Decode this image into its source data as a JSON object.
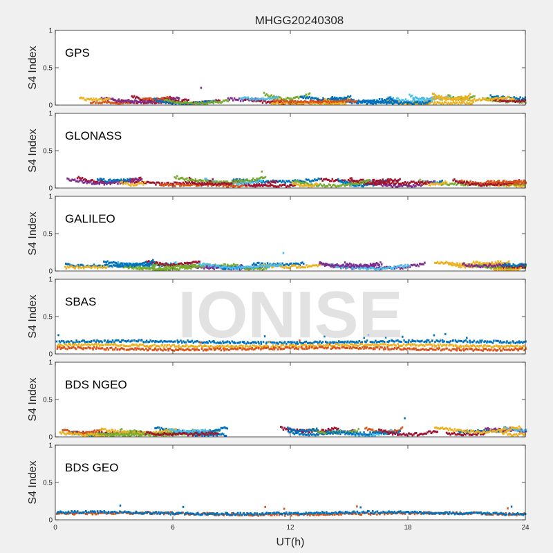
{
  "figure": {
    "title": "MHGG20240308",
    "xlabel": "UT(h)",
    "watermark": "IONISE"
  },
  "chart_data": [
    {
      "type": "scatter",
      "panel": "GPS",
      "ylabel": "S4 Index",
      "xlim": [
        0,
        24
      ],
      "ylim": [
        0,
        1
      ],
      "xticks": [
        0,
        6,
        12,
        18,
        24
      ],
      "yticks": [
        0,
        0.5,
        1
      ],
      "typical_range": [
        0.02,
        0.15
      ],
      "peak": 0.23
    },
    {
      "type": "scatter",
      "panel": "GLONASS",
      "ylabel": "S4 Index",
      "xlim": [
        0,
        24
      ],
      "ylim": [
        0,
        1
      ],
      "xticks": [
        0,
        6,
        12,
        18,
        24
      ],
      "yticks": [
        0,
        0.5,
        1
      ],
      "typical_range": [
        0.02,
        0.17
      ],
      "peak": 0.22
    },
    {
      "type": "scatter",
      "panel": "GALILEO",
      "ylabel": "S4 Index",
      "xlim": [
        0,
        24
      ],
      "ylim": [
        0,
        1
      ],
      "xticks": [
        0,
        6,
        12,
        18,
        24
      ],
      "yticks": [
        0,
        0.5,
        1
      ],
      "typical_range": [
        0.02,
        0.15
      ],
      "peak": 0.24
    },
    {
      "type": "scatter",
      "panel": "SBAS",
      "ylabel": "S4 Index",
      "xlim": [
        0,
        24
      ],
      "ylim": [
        0,
        1
      ],
      "xticks": [
        0,
        6,
        12,
        18,
        24
      ],
      "yticks": [
        0,
        0.5,
        1
      ],
      "series": [
        {
          "color": "#0072BD",
          "level": 0.16
        },
        {
          "color": "#EDB120",
          "level": 0.11
        },
        {
          "color": "#D95319",
          "level": 0.07
        }
      ]
    },
    {
      "type": "scatter",
      "panel": "BDS NGEO",
      "ylabel": "S4 Index",
      "xlim": [
        0,
        24
      ],
      "ylim": [
        0,
        1
      ],
      "xticks": [
        0,
        6,
        12,
        18,
        24
      ],
      "yticks": [
        0,
        0.5,
        1
      ],
      "typical_range": [
        0.02,
        0.15
      ],
      "peak": 0.25
    },
    {
      "type": "scatter",
      "panel": "BDS GEO",
      "ylabel": "S4 Index",
      "xlim": [
        0,
        24
      ],
      "ylim": [
        0,
        1
      ],
      "xticks": [
        0,
        6,
        12,
        18,
        24
      ],
      "yticks": [
        0,
        0.5,
        1
      ],
      "series": [
        {
          "color": "#D95319",
          "level": 0.08
        },
        {
          "color": "#0072BD",
          "level": 0.09
        }
      ]
    }
  ],
  "colors": [
    "#0072BD",
    "#D95319",
    "#EDB120",
    "#7E2F8E",
    "#77AC30",
    "#4DBEEE",
    "#A2142F"
  ]
}
